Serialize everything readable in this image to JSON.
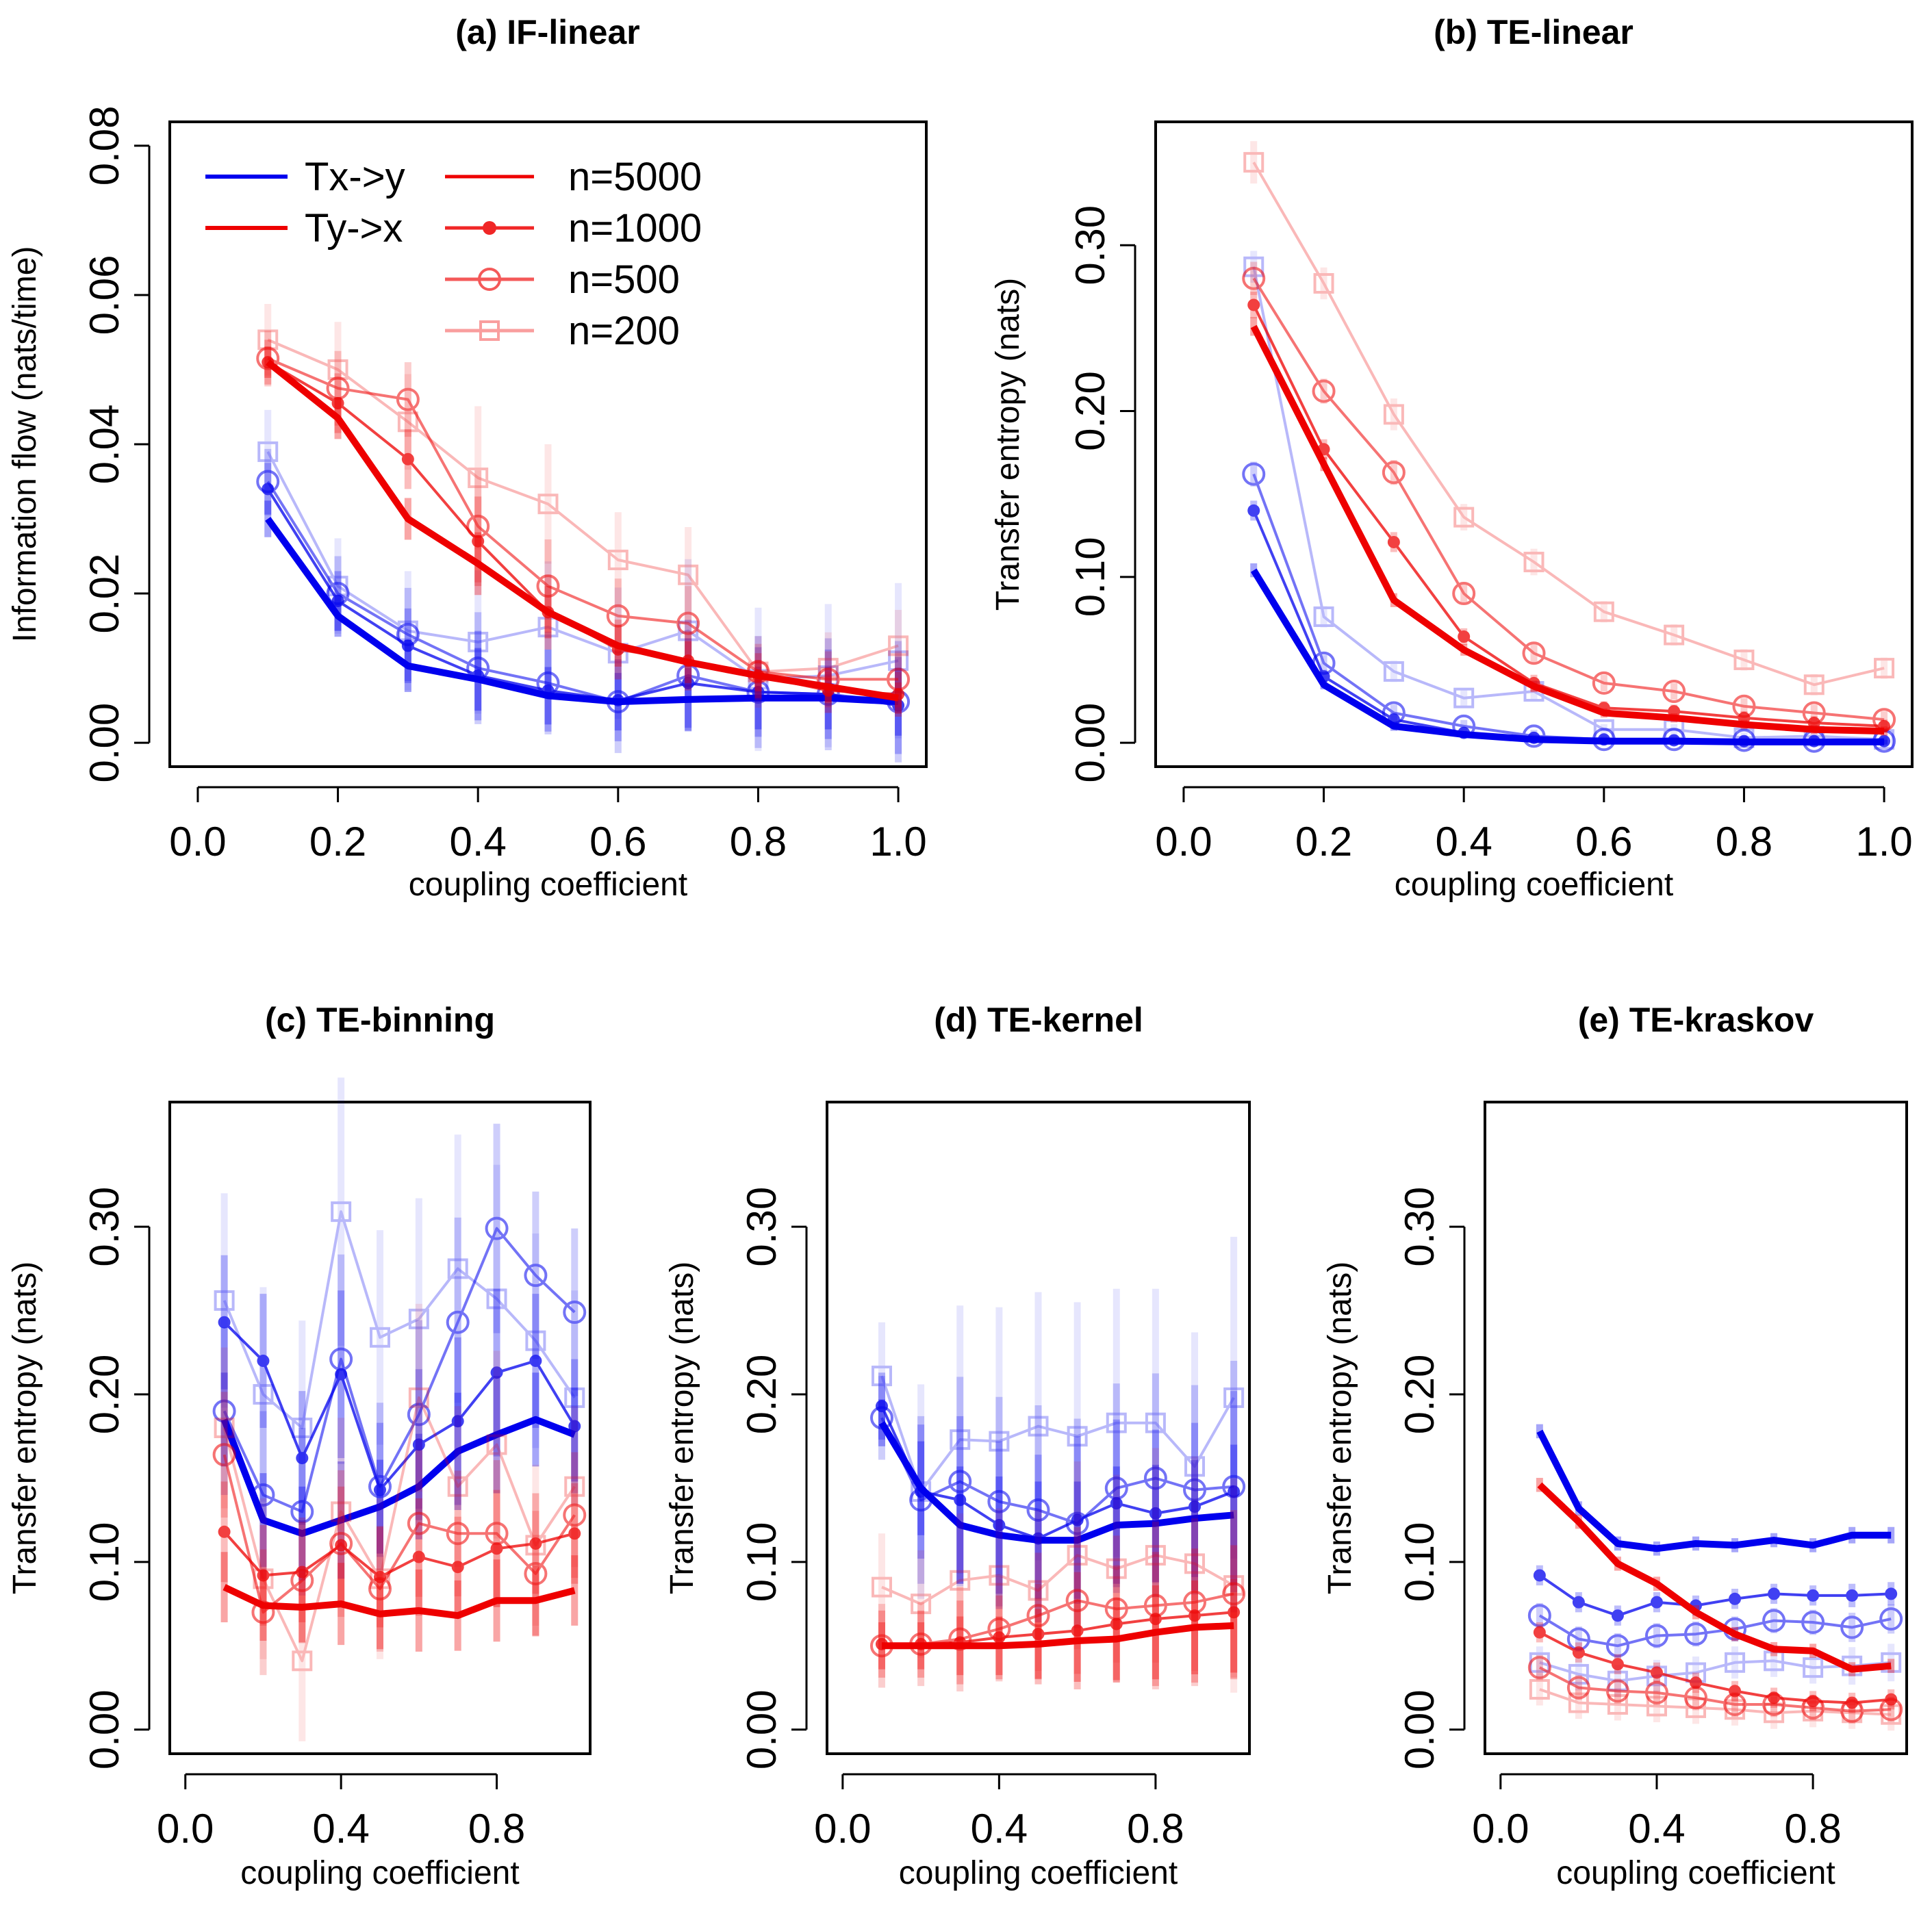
{
  "colors": {
    "tx_y": "#0000ee",
    "ty_x": "#ee0000"
  },
  "legend": {
    "direction_entries": [
      "Tx->y",
      "Ty->x"
    ],
    "sample_entries": [
      "n=5000",
      "n=1000",
      "n=500",
      "n=200"
    ]
  },
  "chart_data": [
    {
      "type": "line",
      "title": "(a) IF-linear",
      "xlabel": "coupling coefficient",
      "ylabel": "Information flow (nats/time)",
      "xlim": [
        0,
        1
      ],
      "ylim": [
        0,
        0.08
      ],
      "xticks": [
        "0.0",
        "0.2",
        "0.4",
        "0.6",
        "0.8",
        "1.0"
      ],
      "yticks": [
        "0.00",
        "0.02",
        "0.04",
        "0.06",
        "0.08"
      ],
      "x": [
        0.1,
        0.2,
        0.3,
        0.4,
        0.5,
        0.6,
        0.7,
        0.8,
        0.9,
        1.0
      ],
      "err": {
        "tx_y": [
          0.0035,
          0.004,
          0.005,
          0.006,
          0.0055,
          0.0055,
          0.006,
          0.006,
          0.006,
          0.0065
        ],
        "ty_x": [
          0.003,
          0.004,
          0.004,
          0.006,
          0.005,
          0.004,
          0.004,
          0.003,
          0.003,
          0.003
        ]
      },
      "series": [
        {
          "name": "Tx->y n=5000",
          "values": [
            0.03,
            0.017,
            0.0103,
            0.0085,
            0.0063,
            0.0055,
            0.0058,
            0.006,
            0.006,
            0.0055
          ]
        },
        {
          "name": "Tx->y n=1000",
          "values": [
            0.034,
            0.019,
            0.013,
            0.009,
            0.007,
            0.0057,
            0.008,
            0.0068,
            0.0065,
            0.005
          ]
        },
        {
          "name": "Tx->y n=500",
          "values": [
            0.035,
            0.02,
            0.0145,
            0.01,
            0.008,
            0.0055,
            0.009,
            0.0068,
            0.0065,
            0.0055
          ]
        },
        {
          "name": "Tx->y n=200",
          "values": [
            0.039,
            0.021,
            0.015,
            0.0135,
            0.0155,
            0.012,
            0.015,
            0.0085,
            0.009,
            0.011
          ]
        },
        {
          "name": "Ty->x n=5000",
          "values": [
            0.051,
            0.0435,
            0.03,
            0.024,
            0.0175,
            0.013,
            0.0108,
            0.009,
            0.0075,
            0.006
          ]
        },
        {
          "name": "Ty->x n=1000",
          "values": [
            0.051,
            0.0455,
            0.038,
            0.027,
            0.0175,
            0.0125,
            0.011,
            0.009,
            0.007,
            0.0065
          ]
        },
        {
          "name": "Ty->x n=500",
          "values": [
            0.0515,
            0.0475,
            0.046,
            0.029,
            0.021,
            0.017,
            0.016,
            0.0095,
            0.0085,
            0.0085
          ]
        },
        {
          "name": "Ty->x n=200",
          "values": [
            0.054,
            0.05,
            0.043,
            0.0355,
            0.032,
            0.0245,
            0.0225,
            0.0095,
            0.01,
            0.013
          ]
        }
      ]
    },
    {
      "type": "line",
      "title": "(b) TE-linear",
      "xlabel": "coupling coefficient",
      "ylabel": "Transfer entropy (nats)",
      "xlim": [
        0,
        1
      ],
      "ylim": [
        0,
        0.36
      ],
      "xticks": [
        "0.0",
        "0.2",
        "0.4",
        "0.6",
        "0.8",
        "1.0"
      ],
      "yticks": [
        "0.00",
        "0.10",
        "0.20",
        "0.30"
      ],
      "x": [
        0.1,
        0.2,
        0.3,
        0.4,
        0.5,
        0.6,
        0.7,
        0.8,
        0.9,
        1.0
      ],
      "err": {
        "tx_y": [
          0.006,
          0.004,
          0.004,
          0.003,
          0.003,
          0.002,
          0.002,
          0.002,
          0.002,
          0.002
        ],
        "ty_x": [
          0.008,
          0.006,
          0.006,
          0.005,
          0.005,
          0.004,
          0.004,
          0.004,
          0.004,
          0.004
        ]
      },
      "series": [
        {
          "name": "Tx->y n=5000",
          "values": [
            0.104,
            0.035,
            0.01,
            0.005,
            0.002,
            0.001,
            0.001,
            0.0005,
            0.0005,
            0.0005
          ]
        },
        {
          "name": "Tx->y n=1000",
          "values": [
            0.14,
            0.04,
            0.014,
            0.006,
            0.003,
            0.002,
            0.0015,
            0.001,
            0.001,
            0.001
          ]
        },
        {
          "name": "Tx->y n=500",
          "values": [
            0.162,
            0.048,
            0.018,
            0.01,
            0.004,
            0.002,
            0.002,
            0.0015,
            0.001,
            0.001
          ]
        },
        {
          "name": "Tx->y n=200",
          "values": [
            0.287,
            0.076,
            0.043,
            0.027,
            0.031,
            0.008,
            0.008,
            0.003,
            0.004,
            0.002
          ]
        },
        {
          "name": "Ty->x n=5000",
          "values": [
            0.251,
            0.168,
            0.086,
            0.056,
            0.034,
            0.018,
            0.015,
            0.011,
            0.008,
            0.007
          ]
        },
        {
          "name": "Ty->x n=1000",
          "values": [
            0.264,
            0.177,
            0.121,
            0.064,
            0.036,
            0.021,
            0.019,
            0.015,
            0.012,
            0.01
          ]
        },
        {
          "name": "Ty->x n=500",
          "values": [
            0.28,
            0.212,
            0.163,
            0.09,
            0.054,
            0.036,
            0.031,
            0.022,
            0.018,
            0.014
          ]
        },
        {
          "name": "Ty->x n=200",
          "values": [
            0.35,
            0.277,
            0.198,
            0.136,
            0.109,
            0.079,
            0.065,
            0.05,
            0.035,
            0.045
          ]
        }
      ]
    },
    {
      "type": "line",
      "title": "(c) TE-binning",
      "xlabel": "coupling coefficient",
      "ylabel": "Transfer entropy (nats)",
      "xlim": [
        0,
        1
      ],
      "ylim": [
        0,
        0.36
      ],
      "xticks": [
        "0.0",
        "0.4",
        "0.8"
      ],
      "yticks": [
        "0.00",
        "0.10",
        "0.20",
        "0.30"
      ],
      "x": [
        0.1,
        0.2,
        0.3,
        0.4,
        0.5,
        0.6,
        0.7,
        0.8,
        0.9,
        1.0
      ],
      "err": {
        "tx_y": [
          0.04,
          0.04,
          0.04,
          0.05,
          0.04,
          0.045,
          0.05,
          0.05,
          0.04,
          0.04
        ],
        "ty_x": [
          0.03,
          0.03,
          0.03,
          0.035,
          0.03,
          0.035,
          0.03,
          0.035,
          0.03,
          0.03
        ]
      },
      "series": [
        {
          "name": "Tx->y n=5000",
          "values": [
            0.185,
            0.125,
            0.117,
            0.125,
            0.133,
            0.145,
            0.166,
            0.176,
            0.185,
            0.176
          ]
        },
        {
          "name": "Tx->y n=1000",
          "values": [
            0.243,
            0.22,
            0.162,
            0.212,
            0.143,
            0.17,
            0.184,
            0.213,
            0.22,
            0.181
          ]
        },
        {
          "name": "Tx->y n=500",
          "values": [
            0.19,
            0.14,
            0.13,
            0.221,
            0.145,
            0.188,
            0.243,
            0.299,
            0.271,
            0.249
          ]
        },
        {
          "name": "Tx->y n=200",
          "values": [
            0.256,
            0.2,
            0.18,
            0.309,
            0.234,
            0.245,
            0.275,
            0.257,
            0.232,
            0.198
          ]
        },
        {
          "name": "Ty->x n=5000",
          "values": [
            0.085,
            0.074,
            0.073,
            0.075,
            0.069,
            0.071,
            0.068,
            0.077,
            0.077,
            0.083
          ]
        },
        {
          "name": "Ty->x n=1000",
          "values": [
            0.118,
            0.092,
            0.094,
            0.11,
            0.091,
            0.103,
            0.097,
            0.108,
            0.111,
            0.117
          ]
        },
        {
          "name": "Ty->x n=500",
          "values": [
            0.164,
            0.07,
            0.089,
            0.111,
            0.084,
            0.123,
            0.117,
            0.117,
            0.093,
            0.128
          ]
        },
        {
          "name": "Ty->x n=200",
          "values": [
            0.18,
            0.09,
            0.041,
            0.13,
            0.09,
            0.198,
            0.145,
            0.17,
            0.11,
            0.145
          ]
        }
      ]
    },
    {
      "type": "line",
      "title": "(d) TE-kernel",
      "xlabel": "coupling coefficient",
      "ylabel": "Transfer entropy (nats)",
      "xlim": [
        0,
        1
      ],
      "ylim": [
        0,
        0.36
      ],
      "xticks": [
        "0.0",
        "0.4",
        "0.8"
      ],
      "yticks": [
        "0.00",
        "0.10",
        "0.20",
        "0.30"
      ],
      "x": [
        0.1,
        0.2,
        0.3,
        0.4,
        0.5,
        0.6,
        0.7,
        0.8,
        0.9,
        1.0
      ],
      "err": {
        "tx_y": [
          0.02,
          0.04,
          0.05,
          0.05,
          0.05,
          0.05,
          0.05,
          0.05,
          0.05,
          0.06
        ],
        "ty_x": [
          0.02,
          0.02,
          0.025,
          0.025,
          0.03,
          0.035,
          0.035,
          0.04,
          0.04,
          0.04
        ]
      },
      "series": [
        {
          "name": "Tx->y n=5000",
          "values": [
            0.183,
            0.144,
            0.122,
            0.116,
            0.113,
            0.113,
            0.122,
            0.123,
            0.126,
            0.128
          ]
        },
        {
          "name": "Tx->y n=1000",
          "values": [
            0.193,
            0.142,
            0.137,
            0.122,
            0.114,
            0.125,
            0.135,
            0.129,
            0.133,
            0.142
          ]
        },
        {
          "name": "Tx->y n=500",
          "values": [
            0.186,
            0.137,
            0.148,
            0.136,
            0.131,
            0.123,
            0.144,
            0.15,
            0.143,
            0.145
          ]
        },
        {
          "name": "Tx->y n=200",
          "values": [
            0.211,
            0.142,
            0.173,
            0.172,
            0.181,
            0.175,
            0.183,
            0.183,
            0.157,
            0.198
          ]
        },
        {
          "name": "Ty->x n=5000",
          "values": [
            0.05,
            0.05,
            0.05,
            0.05,
            0.051,
            0.053,
            0.054,
            0.058,
            0.061,
            0.062
          ]
        },
        {
          "name": "Ty->x n=1000",
          "values": [
            0.051,
            0.051,
            0.052,
            0.055,
            0.057,
            0.059,
            0.063,
            0.066,
            0.068,
            0.07
          ]
        },
        {
          "name": "Ty->x n=500",
          "values": [
            0.05,
            0.051,
            0.054,
            0.06,
            0.068,
            0.077,
            0.072,
            0.074,
            0.076,
            0.081
          ]
        },
        {
          "name": "Ty->x n=200",
          "values": [
            0.085,
            0.075,
            0.089,
            0.092,
            0.083,
            0.104,
            0.096,
            0.104,
            0.099,
            0.086
          ]
        }
      ]
    },
    {
      "type": "line",
      "title": "(e) TE-kraskov",
      "xlabel": "coupling coefficient",
      "ylabel": "Transfer entropy (nats)",
      "xlim": [
        0,
        1
      ],
      "ylim": [
        0,
        0.36
      ],
      "xticks": [
        "0.0",
        "0.4",
        "0.8"
      ],
      "yticks": [
        "0.00",
        "0.10",
        "0.20",
        "0.30"
      ],
      "x": [
        0.1,
        0.2,
        0.3,
        0.4,
        0.5,
        0.6,
        0.7,
        0.8,
        0.9,
        1.0
      ],
      "err": {
        "tx_y": [
          0.006,
          0.006,
          0.006,
          0.006,
          0.006,
          0.006,
          0.006,
          0.006,
          0.007,
          0.007
        ],
        "ty_x": [
          0.006,
          0.006,
          0.006,
          0.006,
          0.006,
          0.006,
          0.006,
          0.006,
          0.006,
          0.006
        ]
      },
      "series": [
        {
          "name": "Tx->y n=5000",
          "values": [
            0.178,
            0.132,
            0.111,
            0.108,
            0.111,
            0.11,
            0.113,
            0.11,
            0.116,
            0.116
          ]
        },
        {
          "name": "Tx->y n=1000",
          "values": [
            0.092,
            0.076,
            0.068,
            0.076,
            0.074,
            0.078,
            0.081,
            0.08,
            0.08,
            0.081
          ]
        },
        {
          "name": "Tx->y n=500",
          "values": [
            0.068,
            0.054,
            0.05,
            0.056,
            0.057,
            0.06,
            0.065,
            0.064,
            0.061,
            0.066
          ]
        },
        {
          "name": "Tx->y n=200",
          "values": [
            0.04,
            0.033,
            0.029,
            0.032,
            0.034,
            0.04,
            0.041,
            0.037,
            0.038,
            0.04
          ]
        },
        {
          "name": "Ty->x n=5000",
          "values": [
            0.146,
            0.124,
            0.099,
            0.087,
            0.07,
            0.057,
            0.048,
            0.047,
            0.036,
            0.038
          ]
        },
        {
          "name": "Ty->x n=1000",
          "values": [
            0.058,
            0.046,
            0.039,
            0.034,
            0.028,
            0.023,
            0.019,
            0.017,
            0.016,
            0.018
          ]
        },
        {
          "name": "Ty->x n=500",
          "values": [
            0.037,
            0.025,
            0.023,
            0.022,
            0.019,
            0.015,
            0.015,
            0.013,
            0.011,
            0.012
          ]
        },
        {
          "name": "Ty->x n=200",
          "values": [
            0.024,
            0.016,
            0.015,
            0.014,
            0.013,
            0.012,
            0.01,
            0.011,
            0.01,
            0.009
          ]
        }
      ]
    }
  ]
}
